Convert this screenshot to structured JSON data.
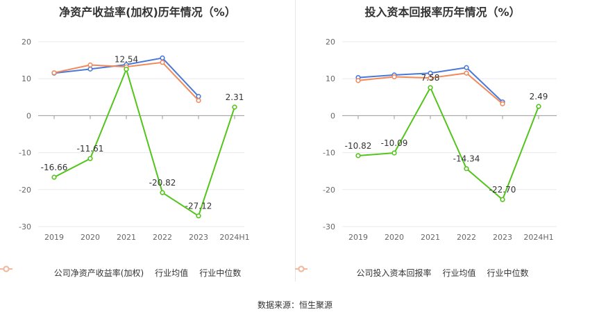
{
  "source_label": "数据来源：恒生聚源",
  "chart_data": [
    {
      "type": "line",
      "title": "净资产收益率(加权)历年情况（%）",
      "categories": [
        "2019",
        "2020",
        "2021",
        "2022",
        "2023",
        "2024H1"
      ],
      "ylim": [
        -30,
        20
      ],
      "yticks": [
        20,
        10,
        0,
        -10,
        -20,
        -30
      ],
      "grid": true,
      "legend_position": "bottom",
      "series": [
        {
          "name": "公司净资产收益率(加权)",
          "color": "#52c41a",
          "values": [
            -16.66,
            -11.61,
            12.54,
            -20.82,
            -27.12,
            2.31
          ],
          "labels": [
            "-16.66",
            "-11.61",
            "12.54",
            "-20.82",
            "-27.12",
            "2.31"
          ]
        },
        {
          "name": "行业均值",
          "color": "#4a78d8",
          "values": [
            11.5,
            12.6,
            13.8,
            15.6,
            5.2,
            null
          ]
        },
        {
          "name": "行业中位数",
          "color": "#f08a5d",
          "values": [
            11.6,
            13.7,
            13.2,
            14.4,
            4.1,
            null
          ]
        }
      ]
    },
    {
      "type": "line",
      "title": "投入资本回报率历年情况（%）",
      "categories": [
        "2019",
        "2020",
        "2021",
        "2022",
        "2023",
        "2024H1"
      ],
      "ylim": [
        -30,
        20
      ],
      "yticks": [
        20,
        10,
        0,
        -10,
        -20,
        -30
      ],
      "grid": true,
      "legend_position": "bottom",
      "series": [
        {
          "name": "公司投入资本回报率",
          "color": "#52c41a",
          "values": [
            -10.82,
            -10.09,
            7.58,
            -14.34,
            -22.7,
            2.49
          ],
          "labels": [
            "-10.82",
            "-10.09",
            "7.58",
            "-14.34",
            "-22.70",
            "2.49"
          ]
        },
        {
          "name": "行业均值",
          "color": "#4a78d8",
          "values": [
            10.3,
            11.0,
            11.5,
            13.0,
            3.7,
            null
          ]
        },
        {
          "name": "行业中位数",
          "color": "#f08a5d",
          "values": [
            9.5,
            10.5,
            10.2,
            11.5,
            3.2,
            null
          ]
        }
      ]
    }
  ]
}
